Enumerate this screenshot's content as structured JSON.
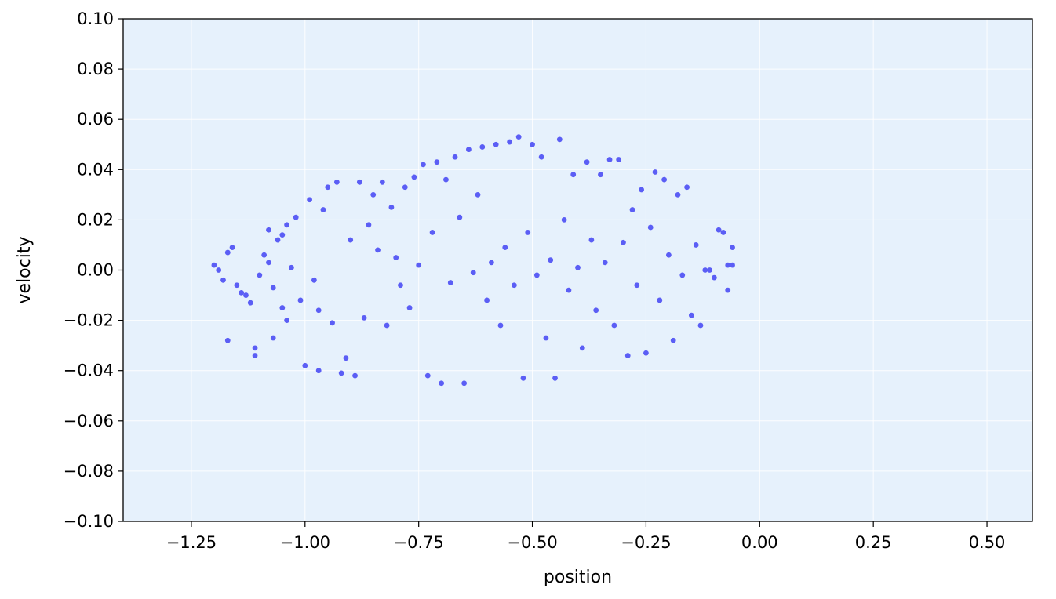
{
  "chart_data": {
    "type": "scatter",
    "title": "",
    "xlabel": "position",
    "ylabel": "velocity",
    "xlim": [
      -1.4,
      0.6
    ],
    "ylim": [
      -0.1,
      0.1
    ],
    "x_ticks": [
      -1.25,
      -1.0,
      -0.75,
      -0.5,
      -0.25,
      0.0,
      0.25,
      0.5
    ],
    "x_tick_labels": [
      "−1.25",
      "−1.00",
      "−0.75",
      "−0.50",
      "−0.25",
      "0.00",
      "0.25",
      "0.50"
    ],
    "y_ticks": [
      0.1,
      0.08,
      0.06,
      0.04,
      0.02,
      0.0,
      -0.02,
      -0.04,
      -0.06,
      -0.08,
      -0.1
    ],
    "y_tick_labels": [
      "0.10",
      "0.08",
      "0.06",
      "0.04",
      "0.02",
      "0.00",
      "−0.02",
      "−0.04",
      "−0.06",
      "−0.08",
      "−0.10"
    ],
    "grid": true,
    "legend": "none",
    "colors": {
      "points": "#5b5ef5",
      "plot_background": "#e6f1fc",
      "grid": "#ffffff"
    },
    "series": [
      {
        "points": [
          [
            -1.2,
            0.002
          ],
          [
            -1.19,
            0.0
          ],
          [
            -1.18,
            -0.004
          ],
          [
            -1.17,
            0.007
          ],
          [
            -1.17,
            -0.028
          ],
          [
            -1.16,
            0.009
          ],
          [
            -1.15,
            -0.006
          ],
          [
            -1.14,
            -0.009
          ],
          [
            -1.13,
            -0.01
          ],
          [
            -1.12,
            -0.013
          ],
          [
            -1.11,
            -0.031
          ],
          [
            -1.11,
            -0.034
          ],
          [
            -1.1,
            -0.002
          ],
          [
            -1.09,
            0.006
          ],
          [
            -1.08,
            0.003
          ],
          [
            -1.08,
            0.016
          ],
          [
            -1.07,
            -0.007
          ],
          [
            -1.07,
            -0.027
          ],
          [
            -1.06,
            0.012
          ],
          [
            -1.05,
            0.014
          ],
          [
            -1.05,
            -0.015
          ],
          [
            -1.04,
            0.018
          ],
          [
            -1.04,
            -0.02
          ],
          [
            -1.03,
            0.001
          ],
          [
            -1.02,
            0.021
          ],
          [
            -1.01,
            -0.012
          ],
          [
            -1.0,
            -0.038
          ],
          [
            -0.99,
            0.028
          ],
          [
            -0.98,
            -0.004
          ],
          [
            -0.97,
            -0.016
          ],
          [
            -0.97,
            -0.04
          ],
          [
            -0.96,
            0.024
          ],
          [
            -0.95,
            0.033
          ],
          [
            -0.94,
            -0.021
          ],
          [
            -0.93,
            0.035
          ],
          [
            -0.92,
            -0.041
          ],
          [
            -0.91,
            -0.035
          ],
          [
            -0.9,
            0.012
          ],
          [
            -0.89,
            -0.042
          ],
          [
            -0.88,
            0.035
          ],
          [
            -0.87,
            -0.019
          ],
          [
            -0.86,
            0.018
          ],
          [
            -0.85,
            0.03
          ],
          [
            -0.84,
            0.008
          ],
          [
            -0.83,
            0.035
          ],
          [
            -0.82,
            -0.022
          ],
          [
            -0.81,
            0.025
          ],
          [
            -0.8,
            0.005
          ],
          [
            -0.79,
            -0.006
          ],
          [
            -0.78,
            0.033
          ],
          [
            -0.77,
            -0.015
          ],
          [
            -0.76,
            0.037
          ],
          [
            -0.75,
            0.002
          ],
          [
            -0.74,
            0.042
          ],
          [
            -0.73,
            -0.042
          ],
          [
            -0.72,
            0.015
          ],
          [
            -0.71,
            0.043
          ],
          [
            -0.7,
            -0.045
          ],
          [
            -0.69,
            0.036
          ],
          [
            -0.68,
            -0.005
          ],
          [
            -0.67,
            0.045
          ],
          [
            -0.66,
            0.021
          ],
          [
            -0.65,
            -0.045
          ],
          [
            -0.64,
            0.048
          ],
          [
            -0.63,
            -0.001
          ],
          [
            -0.62,
            0.03
          ],
          [
            -0.61,
            0.049
          ],
          [
            -0.6,
            -0.012
          ],
          [
            -0.59,
            0.003
          ],
          [
            -0.58,
            0.05
          ],
          [
            -0.57,
            -0.022
          ],
          [
            -0.56,
            0.009
          ],
          [
            -0.55,
            0.051
          ],
          [
            -0.54,
            -0.006
          ],
          [
            -0.53,
            0.053
          ],
          [
            -0.52,
            -0.043
          ],
          [
            -0.51,
            0.015
          ],
          [
            -0.5,
            0.05
          ],
          [
            -0.49,
            -0.002
          ],
          [
            -0.48,
            0.045
          ],
          [
            -0.47,
            -0.027
          ],
          [
            -0.46,
            0.004
          ],
          [
            -0.45,
            -0.043
          ],
          [
            -0.44,
            0.052
          ],
          [
            -0.43,
            0.02
          ],
          [
            -0.42,
            -0.008
          ],
          [
            -0.41,
            0.038
          ],
          [
            -0.4,
            0.001
          ],
          [
            -0.39,
            -0.031
          ],
          [
            -0.38,
            0.043
          ],
          [
            -0.37,
            0.012
          ],
          [
            -0.36,
            -0.016
          ],
          [
            -0.35,
            0.038
          ],
          [
            -0.34,
            0.003
          ],
          [
            -0.33,
            0.044
          ],
          [
            -0.32,
            -0.022
          ],
          [
            -0.31,
            0.044
          ],
          [
            -0.3,
            0.011
          ],
          [
            -0.29,
            -0.034
          ],
          [
            -0.28,
            0.024
          ],
          [
            -0.27,
            -0.006
          ],
          [
            -0.26,
            0.032
          ],
          [
            -0.25,
            -0.033
          ],
          [
            -0.24,
            0.017
          ],
          [
            -0.23,
            0.039
          ],
          [
            -0.22,
            -0.012
          ],
          [
            -0.21,
            0.036
          ],
          [
            -0.2,
            0.006
          ],
          [
            -0.19,
            -0.028
          ],
          [
            -0.18,
            0.03
          ],
          [
            -0.17,
            -0.002
          ],
          [
            -0.16,
            0.033
          ],
          [
            -0.15,
            -0.018
          ],
          [
            -0.14,
            0.01
          ],
          [
            -0.13,
            -0.022
          ],
          [
            -0.12,
            0.0
          ],
          [
            -0.11,
            0.0
          ],
          [
            -0.1,
            -0.003
          ],
          [
            -0.09,
            0.016
          ],
          [
            -0.08,
            0.015
          ],
          [
            -0.07,
            0.002
          ],
          [
            -0.07,
            -0.008
          ],
          [
            -0.06,
            0.009
          ],
          [
            -0.06,
            0.002
          ]
        ]
      }
    ]
  }
}
